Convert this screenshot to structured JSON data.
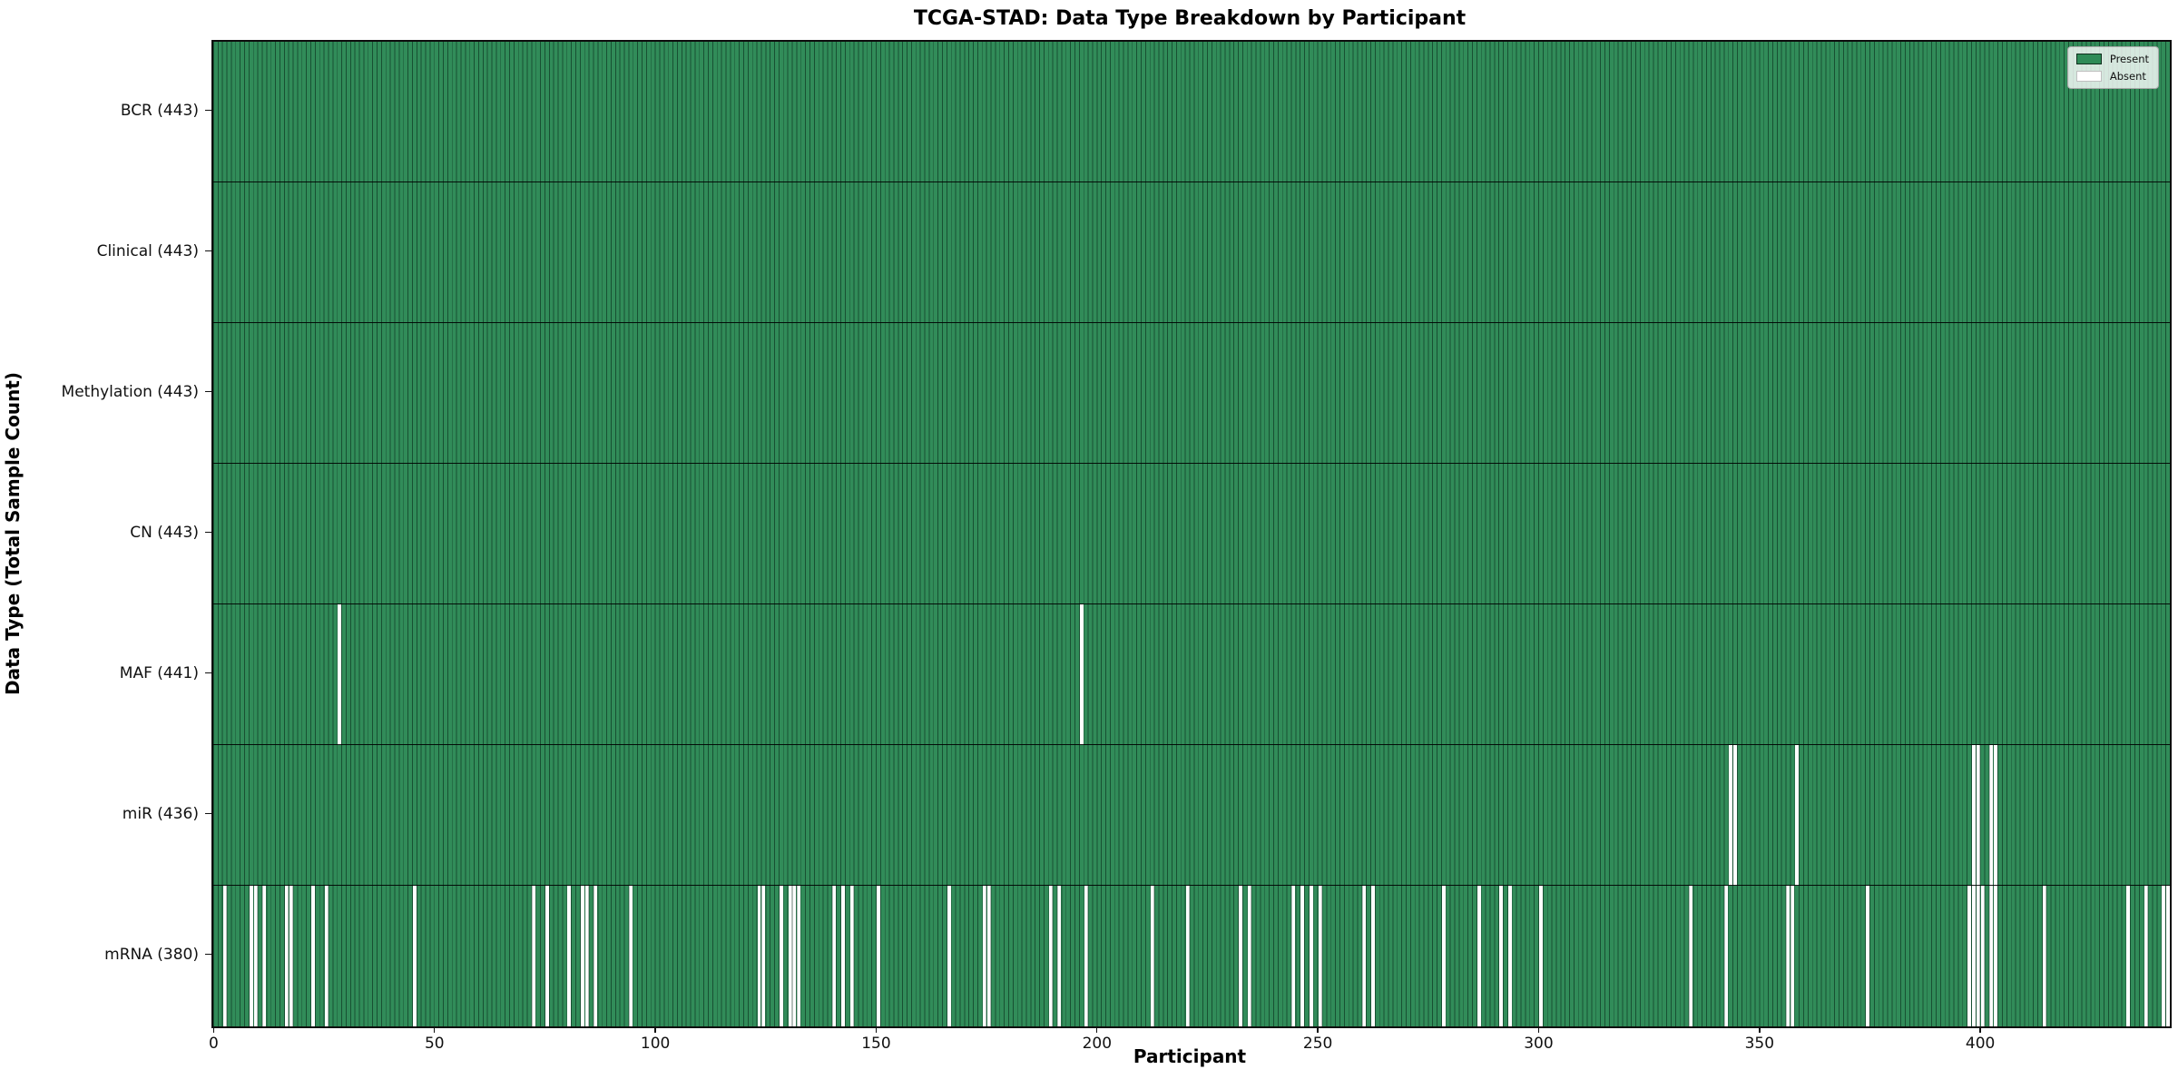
{
  "chart_data": {
    "type": "heatmap",
    "title": "TCGA-STAD: Data Type Breakdown by Participant",
    "xlabel": "Participant",
    "ylabel": "Data Type (Total Sample Count)",
    "n_participants": 443,
    "x_ticks": [
      0,
      50,
      100,
      150,
      200,
      250,
      300,
      350,
      400
    ],
    "legend": [
      {
        "label": "Present",
        "color": "#2e8b57"
      },
      {
        "label": "Absent",
        "color": "#ffffff"
      }
    ],
    "legend_position": "upper right",
    "grid": false,
    "colors": {
      "present_fill": "#318c59",
      "bar_edge": "rgba(8,40,25,0.6)",
      "absent_fill": "#ffffff",
      "row_separator": "rgba(0,0,0,0.9)",
      "plot_border": "#0d0d0d",
      "legend_border": "#a8a8a8"
    },
    "rows": [
      {
        "name": "BCR",
        "label": "BCR (443)",
        "present_count": 443,
        "absent_participants": []
      },
      {
        "name": "Clinical",
        "label": "Clinical (443)",
        "present_count": 443,
        "absent_participants": []
      },
      {
        "name": "Methylation",
        "label": "Methylation (443)",
        "present_count": 443,
        "absent_participants": []
      },
      {
        "name": "CN",
        "label": "CN (443)",
        "present_count": 443,
        "absent_participants": []
      },
      {
        "name": "MAF",
        "label": "MAF (441)",
        "present_count": 441,
        "absent_participants": [
          28,
          196
        ]
      },
      {
        "name": "miR",
        "label": "miR (436)",
        "present_count": 436,
        "absent_participants": [
          343,
          344,
          358,
          398,
          399,
          402,
          403
        ]
      },
      {
        "name": "mRNA",
        "label": "mRNA (380)",
        "present_count": 380,
        "absent_participants": [
          2,
          8,
          9,
          11,
          16,
          17,
          22,
          25,
          45,
          72,
          75,
          80,
          83,
          84,
          86,
          94,
          123,
          124,
          128,
          130,
          131,
          132,
          140,
          142,
          144,
          150,
          166,
          174,
          175,
          189,
          191,
          197,
          212,
          220,
          232,
          234,
          244,
          246,
          248,
          250,
          260,
          262,
          278,
          286,
          291,
          293,
          300,
          334,
          342,
          356,
          357,
          374,
          397,
          398,
          399,
          400,
          402,
          403,
          414,
          433,
          437,
          441,
          442
        ]
      }
    ]
  }
}
